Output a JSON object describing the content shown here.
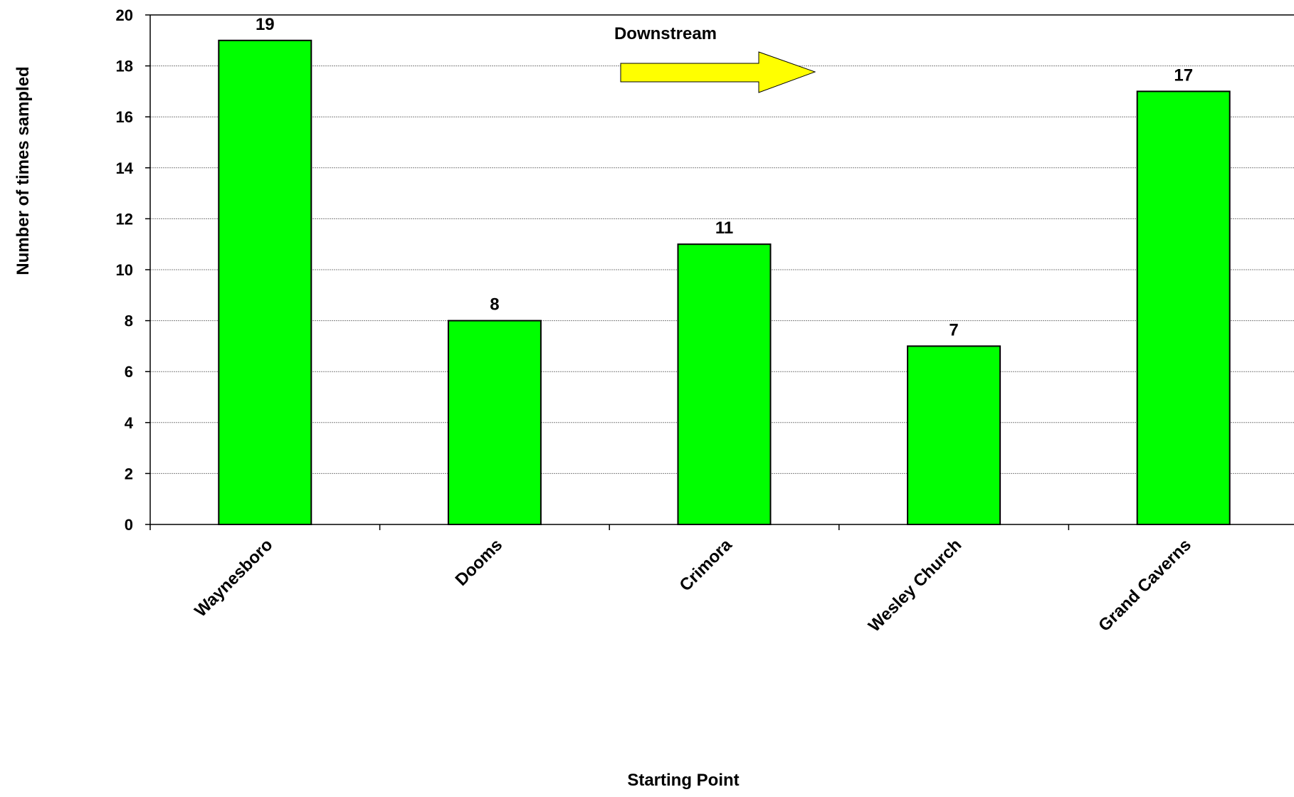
{
  "chart_data": {
    "type": "bar",
    "categories": [
      "Waynesboro",
      "Dooms",
      "Crimora",
      "Wesley Church",
      "Grand Caverns"
    ],
    "values": [
      19,
      8,
      11,
      7,
      17
    ],
    "data_labels": [
      "19",
      "8",
      "11",
      "7",
      "17"
    ],
    "xlabel": "Starting Point",
    "ylabel": "Number of times sampled",
    "ylim": [
      0,
      20
    ],
    "y_ticks": [
      0,
      2,
      4,
      6,
      8,
      10,
      12,
      14,
      16,
      18,
      20
    ],
    "grid": true,
    "annotation": {
      "text": "Downstream",
      "arrow_direction": "right"
    },
    "colors": {
      "bar": "#00ff00",
      "bar_stroke": "#000000",
      "arrow": "#ffff00",
      "gridline": "#808080"
    }
  }
}
